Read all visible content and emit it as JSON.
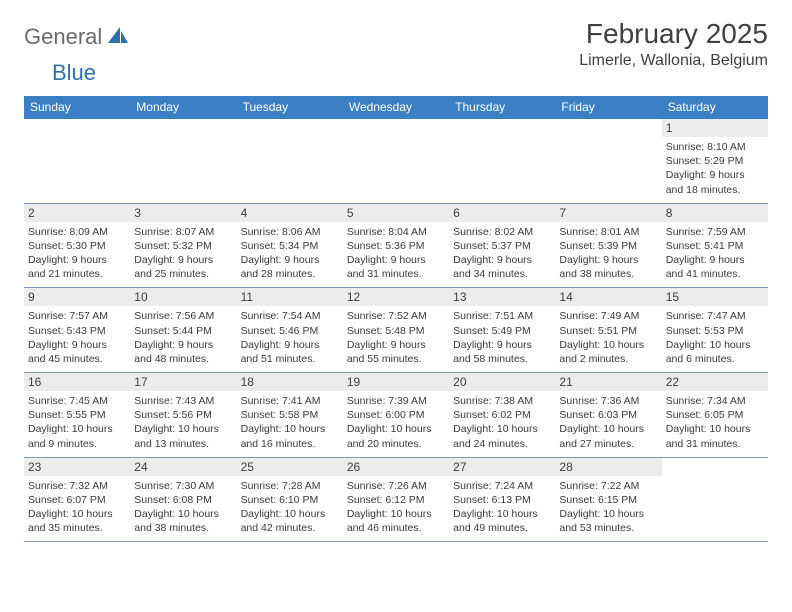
{
  "logo": {
    "part1": "General",
    "part2": "Blue"
  },
  "title": "February 2025",
  "location": "Limerle, Wallonia, Belgium",
  "day_headers": [
    "Sunday",
    "Monday",
    "Tuesday",
    "Wednesday",
    "Thursday",
    "Friday",
    "Saturday"
  ],
  "colors": {
    "header_bg": "#3b7fc4",
    "header_fg": "#ffffff",
    "daynum_bg": "#ececec",
    "rule": "#7f99b5",
    "logo_gray": "#6b6b6b",
    "logo_blue": "#2f6fb0"
  },
  "weeks": [
    [
      {
        "day": "",
        "sunrise": "",
        "sunset": "",
        "daylight": ""
      },
      {
        "day": "",
        "sunrise": "",
        "sunset": "",
        "daylight": ""
      },
      {
        "day": "",
        "sunrise": "",
        "sunset": "",
        "daylight": ""
      },
      {
        "day": "",
        "sunrise": "",
        "sunset": "",
        "daylight": ""
      },
      {
        "day": "",
        "sunrise": "",
        "sunset": "",
        "daylight": ""
      },
      {
        "day": "",
        "sunrise": "",
        "sunset": "",
        "daylight": ""
      },
      {
        "day": "1",
        "sunrise": "Sunrise: 8:10 AM",
        "sunset": "Sunset: 5:29 PM",
        "daylight": "Daylight: 9 hours and 18 minutes."
      }
    ],
    [
      {
        "day": "2",
        "sunrise": "Sunrise: 8:09 AM",
        "sunset": "Sunset: 5:30 PM",
        "daylight": "Daylight: 9 hours and 21 minutes."
      },
      {
        "day": "3",
        "sunrise": "Sunrise: 8:07 AM",
        "sunset": "Sunset: 5:32 PM",
        "daylight": "Daylight: 9 hours and 25 minutes."
      },
      {
        "day": "4",
        "sunrise": "Sunrise: 8:06 AM",
        "sunset": "Sunset: 5:34 PM",
        "daylight": "Daylight: 9 hours and 28 minutes."
      },
      {
        "day": "5",
        "sunrise": "Sunrise: 8:04 AM",
        "sunset": "Sunset: 5:36 PM",
        "daylight": "Daylight: 9 hours and 31 minutes."
      },
      {
        "day": "6",
        "sunrise": "Sunrise: 8:02 AM",
        "sunset": "Sunset: 5:37 PM",
        "daylight": "Daylight: 9 hours and 34 minutes."
      },
      {
        "day": "7",
        "sunrise": "Sunrise: 8:01 AM",
        "sunset": "Sunset: 5:39 PM",
        "daylight": "Daylight: 9 hours and 38 minutes."
      },
      {
        "day": "8",
        "sunrise": "Sunrise: 7:59 AM",
        "sunset": "Sunset: 5:41 PM",
        "daylight": "Daylight: 9 hours and 41 minutes."
      }
    ],
    [
      {
        "day": "9",
        "sunrise": "Sunrise: 7:57 AM",
        "sunset": "Sunset: 5:43 PM",
        "daylight": "Daylight: 9 hours and 45 minutes."
      },
      {
        "day": "10",
        "sunrise": "Sunrise: 7:56 AM",
        "sunset": "Sunset: 5:44 PM",
        "daylight": "Daylight: 9 hours and 48 minutes."
      },
      {
        "day": "11",
        "sunrise": "Sunrise: 7:54 AM",
        "sunset": "Sunset: 5:46 PM",
        "daylight": "Daylight: 9 hours and 51 minutes."
      },
      {
        "day": "12",
        "sunrise": "Sunrise: 7:52 AM",
        "sunset": "Sunset: 5:48 PM",
        "daylight": "Daylight: 9 hours and 55 minutes."
      },
      {
        "day": "13",
        "sunrise": "Sunrise: 7:51 AM",
        "sunset": "Sunset: 5:49 PM",
        "daylight": "Daylight: 9 hours and 58 minutes."
      },
      {
        "day": "14",
        "sunrise": "Sunrise: 7:49 AM",
        "sunset": "Sunset: 5:51 PM",
        "daylight": "Daylight: 10 hours and 2 minutes."
      },
      {
        "day": "15",
        "sunrise": "Sunrise: 7:47 AM",
        "sunset": "Sunset: 5:53 PM",
        "daylight": "Daylight: 10 hours and 6 minutes."
      }
    ],
    [
      {
        "day": "16",
        "sunrise": "Sunrise: 7:45 AM",
        "sunset": "Sunset: 5:55 PM",
        "daylight": "Daylight: 10 hours and 9 minutes."
      },
      {
        "day": "17",
        "sunrise": "Sunrise: 7:43 AM",
        "sunset": "Sunset: 5:56 PM",
        "daylight": "Daylight: 10 hours and 13 minutes."
      },
      {
        "day": "18",
        "sunrise": "Sunrise: 7:41 AM",
        "sunset": "Sunset: 5:58 PM",
        "daylight": "Daylight: 10 hours and 16 minutes."
      },
      {
        "day": "19",
        "sunrise": "Sunrise: 7:39 AM",
        "sunset": "Sunset: 6:00 PM",
        "daylight": "Daylight: 10 hours and 20 minutes."
      },
      {
        "day": "20",
        "sunrise": "Sunrise: 7:38 AM",
        "sunset": "Sunset: 6:02 PM",
        "daylight": "Daylight: 10 hours and 24 minutes."
      },
      {
        "day": "21",
        "sunrise": "Sunrise: 7:36 AM",
        "sunset": "Sunset: 6:03 PM",
        "daylight": "Daylight: 10 hours and 27 minutes."
      },
      {
        "day": "22",
        "sunrise": "Sunrise: 7:34 AM",
        "sunset": "Sunset: 6:05 PM",
        "daylight": "Daylight: 10 hours and 31 minutes."
      }
    ],
    [
      {
        "day": "23",
        "sunrise": "Sunrise: 7:32 AM",
        "sunset": "Sunset: 6:07 PM",
        "daylight": "Daylight: 10 hours and 35 minutes."
      },
      {
        "day": "24",
        "sunrise": "Sunrise: 7:30 AM",
        "sunset": "Sunset: 6:08 PM",
        "daylight": "Daylight: 10 hours and 38 minutes."
      },
      {
        "day": "25",
        "sunrise": "Sunrise: 7:28 AM",
        "sunset": "Sunset: 6:10 PM",
        "daylight": "Daylight: 10 hours and 42 minutes."
      },
      {
        "day": "26",
        "sunrise": "Sunrise: 7:26 AM",
        "sunset": "Sunset: 6:12 PM",
        "daylight": "Daylight: 10 hours and 46 minutes."
      },
      {
        "day": "27",
        "sunrise": "Sunrise: 7:24 AM",
        "sunset": "Sunset: 6:13 PM",
        "daylight": "Daylight: 10 hours and 49 minutes."
      },
      {
        "day": "28",
        "sunrise": "Sunrise: 7:22 AM",
        "sunset": "Sunset: 6:15 PM",
        "daylight": "Daylight: 10 hours and 53 minutes."
      },
      {
        "day": "",
        "sunrise": "",
        "sunset": "",
        "daylight": ""
      }
    ]
  ]
}
